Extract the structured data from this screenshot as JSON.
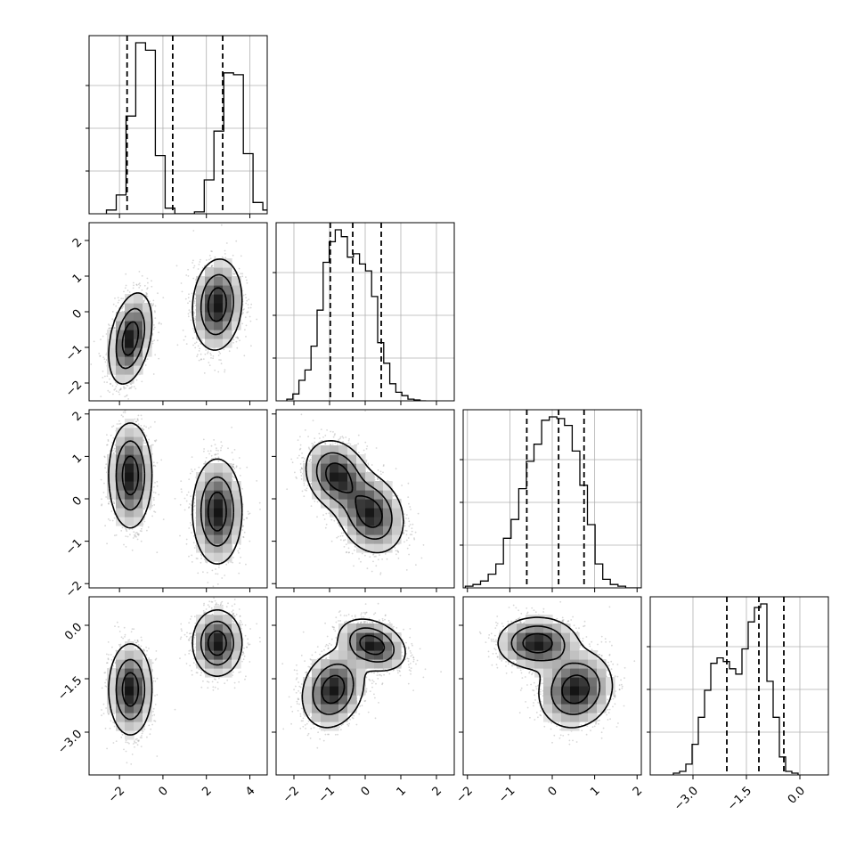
{
  "chart_data": {
    "type": "corner",
    "title": "",
    "parameters": 4,
    "params": [
      {
        "index": 0,
        "range": [
          -3.4,
          4.8
        ],
        "ticks": [
          -2,
          0,
          2,
          4
        ],
        "tick_labels": [
          "−2",
          "0",
          "2",
          "4"
        ],
        "quantiles": [
          -1.65,
          0.45,
          2.75
        ],
        "hist": {
          "start": -2.6,
          "width": 0.45,
          "counts": [
            0.02,
            0.1,
            0.52,
            0.91,
            0.87,
            0.31,
            0.03,
            0.0,
            0.0,
            0.01,
            0.18,
            0.44,
            0.75,
            0.74,
            0.32,
            0.06,
            0.02
          ]
        }
      },
      {
        "index": 1,
        "range": [
          -2.5,
          2.5
        ],
        "ticks": [
          -2,
          -1,
          0,
          1,
          2
        ],
        "tick_labels": [
          "−2",
          "−1",
          "0",
          "1",
          "2"
        ],
        "quantiles": [
          -0.98,
          -0.35,
          0.45
        ],
        "hist": {
          "start": -2.2,
          "width": 0.17,
          "counts": [
            0.01,
            0.04,
            0.12,
            0.18,
            0.32,
            0.53,
            0.81,
            0.93,
            1.0,
            0.96,
            0.84,
            0.86,
            0.8,
            0.76,
            0.61,
            0.34,
            0.22,
            0.1,
            0.05,
            0.03,
            0.01,
            0.005,
            0.0
          ]
        }
      },
      {
        "index": 2,
        "range": [
          -2.1,
          2.1
        ],
        "ticks": [
          -2,
          -1,
          0,
          1,
          2
        ],
        "tick_labels": [
          "−2",
          "−1",
          "0",
          "1",
          "2"
        ],
        "quantiles": [
          -0.6,
          0.15,
          0.75
        ],
        "hist": {
          "start": -2.05,
          "width": 0.18,
          "counts": [
            0.01,
            0.02,
            0.04,
            0.08,
            0.14,
            0.29,
            0.4,
            0.58,
            0.74,
            0.84,
            0.98,
            1.0,
            0.99,
            0.95,
            0.8,
            0.6,
            0.37,
            0.14,
            0.05,
            0.02,
            0.01,
            0.0,
            0.0
          ]
        }
      },
      {
        "index": 3,
        "range": [
          -4.2,
          0.8
        ],
        "ticks": [
          -3.0,
          -1.5,
          0.0
        ],
        "tick_labels": [
          "−3.0",
          "−1.5",
          "0.0"
        ],
        "quantiles": [
          -2.05,
          -1.15,
          -0.45
        ],
        "hist": {
          "start": -3.55,
          "width": 0.175,
          "counts": [
            0.01,
            0.02,
            0.06,
            0.17,
            0.32,
            0.47,
            0.62,
            0.65,
            0.63,
            0.59,
            0.56,
            0.7,
            0.85,
            0.93,
            0.95,
            0.52,
            0.32,
            0.1,
            0.02,
            0.01
          ]
        }
      }
    ],
    "pairs": [
      {
        "x": 0,
        "y": 1,
        "clusters": [
          {
            "cx": -1.5,
            "cy": -0.75,
            "sx": 0.48,
            "sy": 0.62,
            "corr": 0.35,
            "w": 0.5
          },
          {
            "cx": 2.5,
            "cy": 0.2,
            "sx": 0.55,
            "sy": 0.62,
            "corr": 0.1,
            "w": 0.5
          }
        ]
      },
      {
        "x": 0,
        "y": 2,
        "clusters": [
          {
            "cx": -1.5,
            "cy": 0.55,
            "sx": 0.48,
            "sy": 0.6,
            "corr": 0.0,
            "w": 0.5
          },
          {
            "cx": 2.5,
            "cy": -0.3,
            "sx": 0.55,
            "sy": 0.6,
            "corr": 0.0,
            "w": 0.5
          }
        ]
      },
      {
        "x": 1,
        "y": 2,
        "clusters": [
          {
            "cx": -0.8,
            "cy": 0.55,
            "sx": 0.42,
            "sy": 0.4,
            "corr": -0.2,
            "w": 0.5
          },
          {
            "cx": 0.15,
            "cy": -0.35,
            "sx": 0.45,
            "sy": 0.45,
            "corr": -0.2,
            "w": 0.5
          }
        ]
      },
      {
        "x": 0,
        "y": 3,
        "clusters": [
          {
            "cx": -1.5,
            "cy": -1.8,
            "sx": 0.48,
            "sy": 0.62,
            "corr": 0.0,
            "w": 0.5
          },
          {
            "cx": 2.5,
            "cy": -0.5,
            "sx": 0.55,
            "sy": 0.45,
            "corr": 0.0,
            "w": 0.5
          }
        ]
      },
      {
        "x": 1,
        "y": 3,
        "clusters": [
          {
            "cx": -0.9,
            "cy": -1.8,
            "sx": 0.42,
            "sy": 0.52,
            "corr": 0.2,
            "w": 0.5
          },
          {
            "cx": 0.2,
            "cy": -0.55,
            "sx": 0.45,
            "sy": 0.35,
            "corr": -0.3,
            "w": 0.5
          }
        ]
      },
      {
        "x": 2,
        "y": 3,
        "clusters": [
          {
            "cx": -0.35,
            "cy": -0.5,
            "sx": 0.45,
            "sy": 0.35,
            "corr": 0.0,
            "w": 0.5
          },
          {
            "cx": 0.55,
            "cy": -1.8,
            "sx": 0.42,
            "sy": 0.52,
            "corr": 0.1,
            "w": 0.5
          }
        ]
      }
    ],
    "contour_levels": [
      0.12,
      0.4,
      0.75
    ],
    "grid": true,
    "colors": {
      "line": "#000000",
      "points": "#8c8c8c",
      "grid": "#b0b0b0",
      "density_dark": "#000000"
    }
  }
}
